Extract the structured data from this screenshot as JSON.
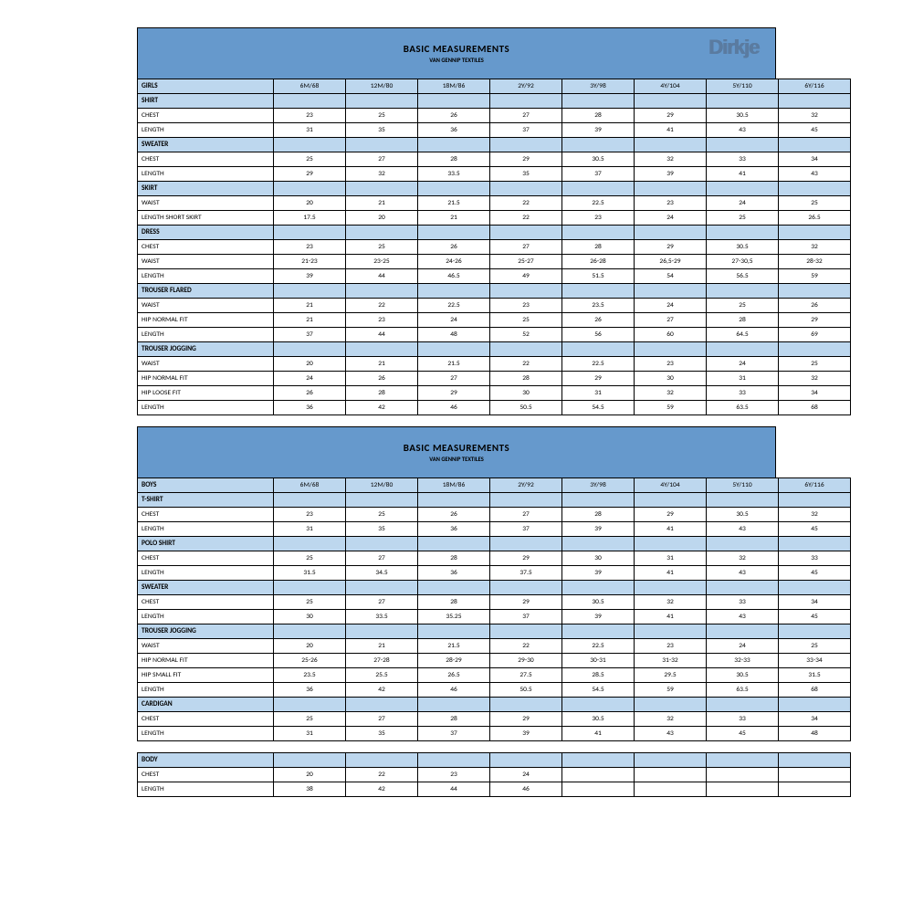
{
  "colors": {
    "band": "#6699cc",
    "row_blue": "#bdd7ee",
    "border": "#000000",
    "bg": "#ffffff",
    "logo": "#5a7ba0"
  },
  "title": "BASIC MEASUREMENTS",
  "subtitle": "VAN GENNIP TEXTILES",
  "logo": "Dirkje",
  "sizes": [
    "6M/68",
    "12M/80",
    "18M/86",
    "2Y/92",
    "3Y/98",
    "4Y/104",
    "5Y/110",
    "6Y/116"
  ],
  "tables": [
    {
      "heading": "GIRLS",
      "show_band": true,
      "show_logo": true,
      "groups": [
        {
          "name": "SHIRT",
          "rows": [
            {
              "label": "CHEST",
              "v": [
                "23",
                "25",
                "26",
                "27",
                "28",
                "29",
                "30.5",
                "32"
              ]
            },
            {
              "label": "LENGTH",
              "v": [
                "31",
                "35",
                "36",
                "37",
                "39",
                "41",
                "43",
                "45"
              ]
            }
          ]
        },
        {
          "name": "SWEATER",
          "rows": [
            {
              "label": "CHEST",
              "v": [
                "25",
                "27",
                "28",
                "29",
                "30.5",
                "32",
                "33",
                "34"
              ]
            },
            {
              "label": "LENGTH",
              "v": [
                "29",
                "32",
                "33.5",
                "35",
                "37",
                "39",
                "41",
                "43"
              ]
            }
          ]
        },
        {
          "name": "SKIRT",
          "rows": [
            {
              "label": "WAIST",
              "v": [
                "20",
                "21",
                "21.5",
                "22",
                "22.5",
                "23",
                "24",
                "25"
              ]
            },
            {
              "label": "LENGTH SHORT SKIRT",
              "v": [
                "17.5",
                "20",
                "21",
                "22",
                "23",
                "24",
                "25",
                "26.5"
              ]
            }
          ]
        },
        {
          "name": "DRESS",
          "rows": [
            {
              "label": "CHEST",
              "v": [
                "23",
                "25",
                "26",
                "27",
                "28",
                "29",
                "30.5",
                "32"
              ]
            },
            {
              "label": "WAIST",
              "v": [
                "21-23",
                "23-25",
                "24-26",
                "25-27",
                "26-28",
                "26,5-29",
                "27-30,5",
                "28-32"
              ]
            },
            {
              "label": "LENGTH",
              "v": [
                "39",
                "44",
                "46.5",
                "49",
                "51.5",
                "54",
                "56.5",
                "59"
              ]
            }
          ]
        },
        {
          "name": "TROUSER FLARED",
          "rows": [
            {
              "label": "WAIST",
              "v": [
                "21",
                "22",
                "22.5",
                "23",
                "23.5",
                "24",
                "25",
                "26"
              ]
            },
            {
              "label": "HIP NORMAL FIT",
              "v": [
                "21",
                "23",
                "24",
                "25",
                "26",
                "27",
                "28",
                "29"
              ]
            },
            {
              "label": "LENGTH",
              "v": [
                "37",
                "44",
                "48",
                "52",
                "56",
                "60",
                "64.5",
                "69"
              ]
            }
          ]
        },
        {
          "name": "TROUSER JOGGING",
          "rows": [
            {
              "label": "WAIST",
              "v": [
                "20",
                "21",
                "21.5",
                "22",
                "22.5",
                "23",
                "24",
                "25"
              ]
            },
            {
              "label": "HIP NORMAL FIT",
              "v": [
                "24",
                "26",
                "27",
                "28",
                "29",
                "30",
                "31",
                "32"
              ]
            },
            {
              "label": "HIP LOOSE FIT",
              "v": [
                "26",
                "28",
                "29",
                "30",
                "31",
                "32",
                "33",
                "34"
              ]
            },
            {
              "label": "LENGTH",
              "v": [
                "36",
                "42",
                "46",
                "50.5",
                "54.5",
                "59",
                "63.5",
                "68"
              ]
            }
          ]
        }
      ]
    },
    {
      "heading": "BOYS",
      "show_band": true,
      "show_logo": false,
      "groups": [
        {
          "name": "T-SHIRT",
          "rows": [
            {
              "label": "CHEST",
              "v": [
                "23",
                "25",
                "26",
                "27",
                "28",
                "29",
                "30.5",
                "32"
              ]
            },
            {
              "label": "LENGTH",
              "v": [
                "31",
                "35",
                "36",
                "37",
                "39",
                "41",
                "43",
                "45"
              ]
            }
          ]
        },
        {
          "name": "POLO SHIRT",
          "rows": [
            {
              "label": "CHEST",
              "v": [
                "25",
                "27",
                "28",
                "29",
                "30",
                "31",
                "32",
                "33"
              ]
            },
            {
              "label": "LENGTH",
              "v": [
                "31.5",
                "34.5",
                "36",
                "37.5",
                "39",
                "41",
                "43",
                "45"
              ]
            }
          ]
        },
        {
          "name": "SWEATER",
          "rows": [
            {
              "label": "CHEST",
              "v": [
                "25",
                "27",
                "28",
                "29",
                "30.5",
                "32",
                "33",
                "34"
              ]
            },
            {
              "label": "LENGTH",
              "v": [
                "30",
                "33.5",
                "35.25",
                "37",
                "39",
                "41",
                "43",
                "45"
              ]
            }
          ]
        },
        {
          "name": "TROUSER JOGGING",
          "rows": [
            {
              "label": "WAIST",
              "v": [
                "20",
                "21",
                "21.5",
                "22",
                "22.5",
                "23",
                "24",
                "25"
              ]
            },
            {
              "label": "HIP NORMAL FIT",
              "v": [
                "25-26",
                "27-28",
                "28-29",
                "29-30",
                "30-31",
                "31-32",
                "32-33",
                "33-34"
              ]
            },
            {
              "label": "HIP SMALL FIT",
              "v": [
                "23.5",
                "25.5",
                "26.5",
                "27.5",
                "28.5",
                "29.5",
                "30.5",
                "31.5"
              ]
            },
            {
              "label": "LENGTH",
              "v": [
                "36",
                "42",
                "46",
                "50.5",
                "54.5",
                "59",
                "63.5",
                "68"
              ]
            }
          ]
        },
        {
          "name": "CARDIGAN",
          "rows": [
            {
              "label": "CHEST",
              "v": [
                "25",
                "27",
                "28",
                "29",
                "30.5",
                "32",
                "33",
                "34"
              ]
            },
            {
              "label": "LENGTH",
              "v": [
                "31",
                "35",
                "37",
                "39",
                "41",
                "43",
                "45",
                "48"
              ]
            }
          ]
        }
      ]
    },
    {
      "heading": "BODY",
      "show_band": false,
      "show_logo": false,
      "groups": [
        {
          "name": null,
          "rows": [
            {
              "label": "CHEST",
              "v": [
                "20",
                "22",
                "23",
                "24",
                "",
                "",
                "",
                ""
              ]
            },
            {
              "label": "LENGTH",
              "v": [
                "38",
                "42",
                "44",
                "46",
                "",
                "",
                "",
                ""
              ]
            }
          ]
        }
      ]
    }
  ]
}
